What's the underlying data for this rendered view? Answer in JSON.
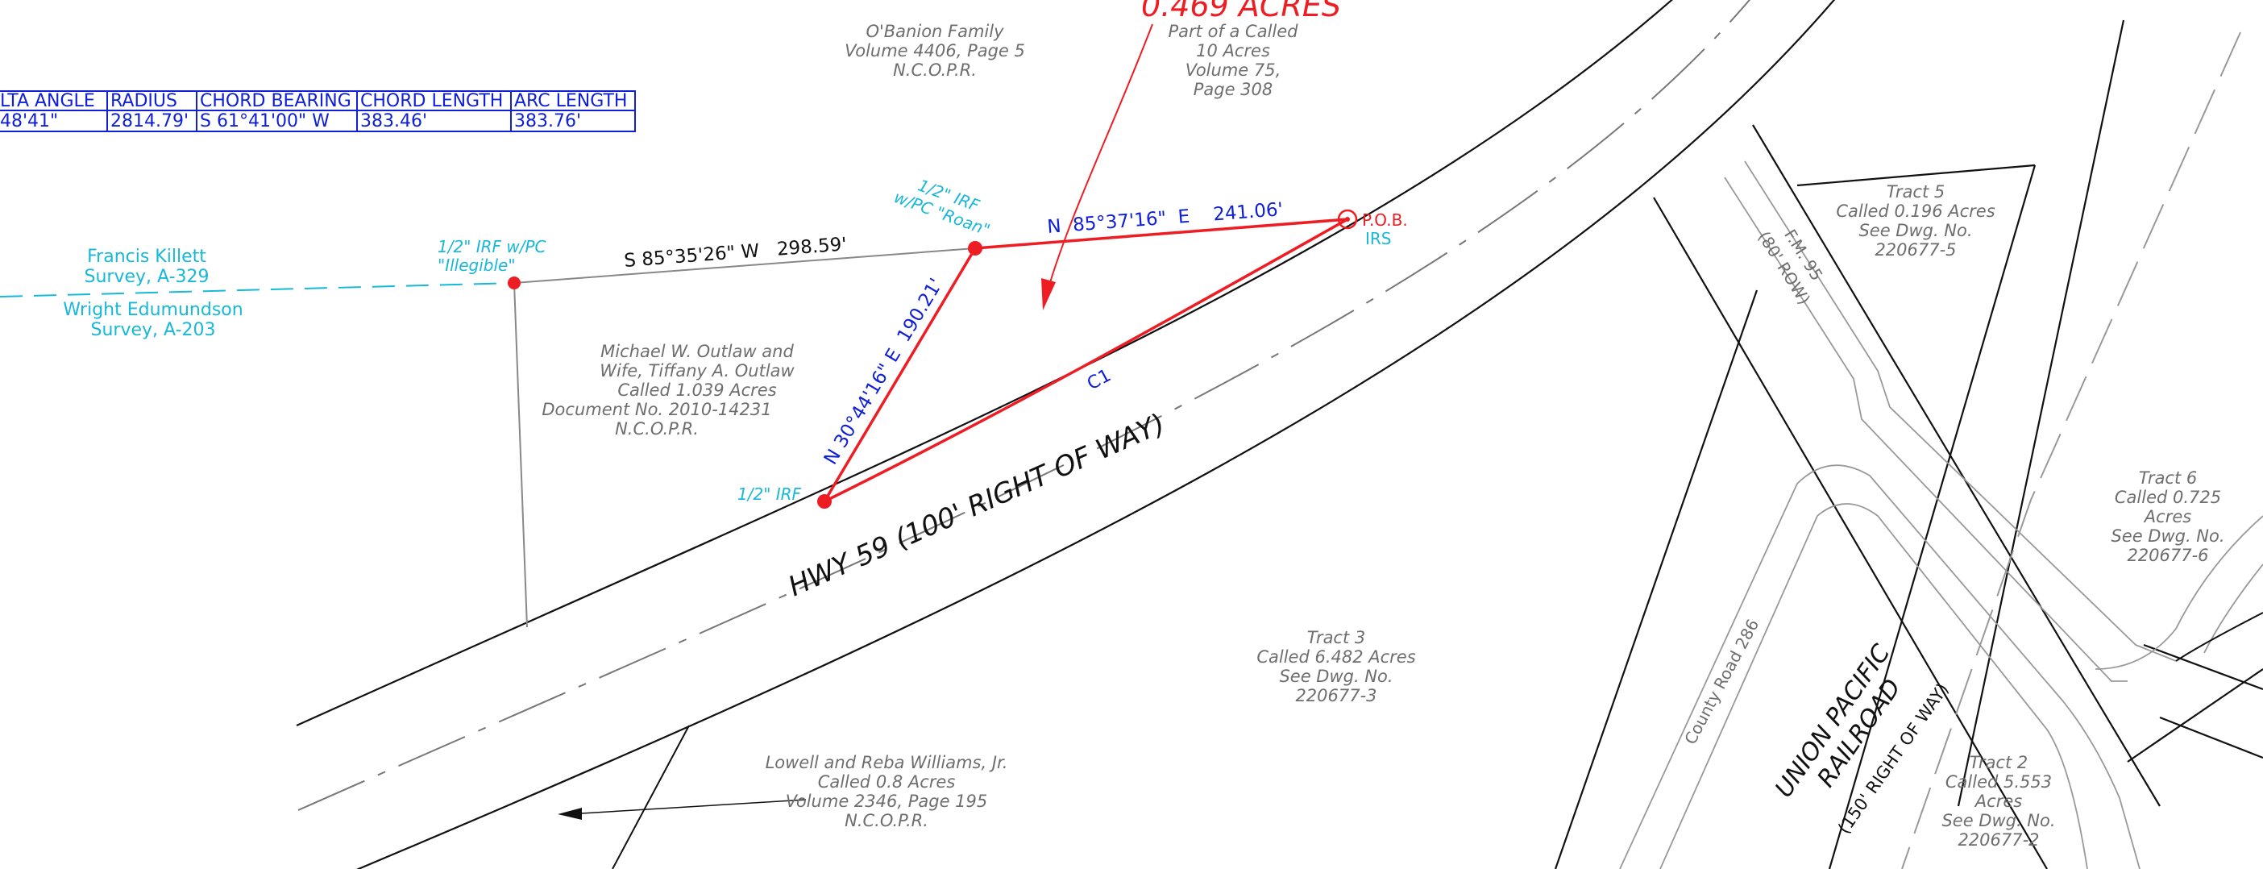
{
  "colors": {
    "red": "#ee1d23",
    "blue": "#1020d8",
    "cyan": "#17b8d8",
    "grey": "#6e6e6e",
    "black": "#111111"
  },
  "curve_table": {
    "headers": [
      "LTA ANGLE",
      "RADIUS",
      "CHORD BEARING",
      "CHORD LENGTH",
      "ARC LENGTH"
    ],
    "row": [
      "48'41\"",
      "2814.79'",
      "S 61°41'00\" W",
      "383.46'",
      "383.76'"
    ]
  },
  "subject": {
    "acres": "0.469 ACRES",
    "lines": [
      "Part of a Called",
      "10 Acres",
      "Volume 75,",
      "Page 308"
    ]
  },
  "obanion": [
    "O'Banion Family",
    "Volume 4406, Page 5",
    "N.C.O.P.R."
  ],
  "outlaw": [
    "Michael W. Outlaw and",
    "Wife, Tiffany A. Outlaw",
    "Called 1.039 Acres",
    "Document No. 2010-14231",
    "N.C.O.P.R."
  ],
  "williams": [
    "Lowell and Reba Williams, Jr.",
    "Called 0.8 Acres",
    "Volume 2346, Page 195",
    "N.C.O.P.R."
  ],
  "tract3": [
    "Tract 3",
    "Called 6.482 Acres",
    "See Dwg. No.",
    "220677-3"
  ],
  "tract5": [
    "Tract 5",
    "Called 0.196 Acres",
    "See Dwg. No.",
    "220677-5"
  ],
  "tract6": [
    "Tract 6",
    "Called 0.725",
    "Acres",
    "See Dwg. No.",
    "220677-6"
  ],
  "tract2": [
    "Tract 2",
    "Called 5.553",
    "Acres",
    "See Dwg. No.",
    "220677-2"
  ],
  "survey_north": [
    "Francis Killett",
    "Survey, A-329"
  ],
  "survey_south": [
    "Wright Edumundson",
    "Survey, A-203"
  ],
  "monuments": {
    "west": [
      "1/2\" IRF w/PC",
      "\"Illegible\""
    ],
    "north": [
      "1/2\" IRF",
      "w/PC \"Roan\""
    ],
    "south": "1/2\" IRF",
    "pob": "P.O.B.",
    "irs": "IRS"
  },
  "calls": {
    "west_line": "S 85°35'26\" W   298.59'",
    "north_line": "N  85°37'16\"  E    241.06'",
    "west_side": "N 30°44'16\" E  190.21'",
    "curve": "C1"
  },
  "roads": {
    "hwy": "HWY 59 (100' RIGHT OF WAY)",
    "fm95": [
      "F.M. 95",
      "(80' ROW)"
    ],
    "county_road": "County Road 286",
    "railroad": [
      "UNION PACIFIC",
      "RAILROAD"
    ],
    "railroad_row": "(150' RIGHT OF WAY)"
  }
}
